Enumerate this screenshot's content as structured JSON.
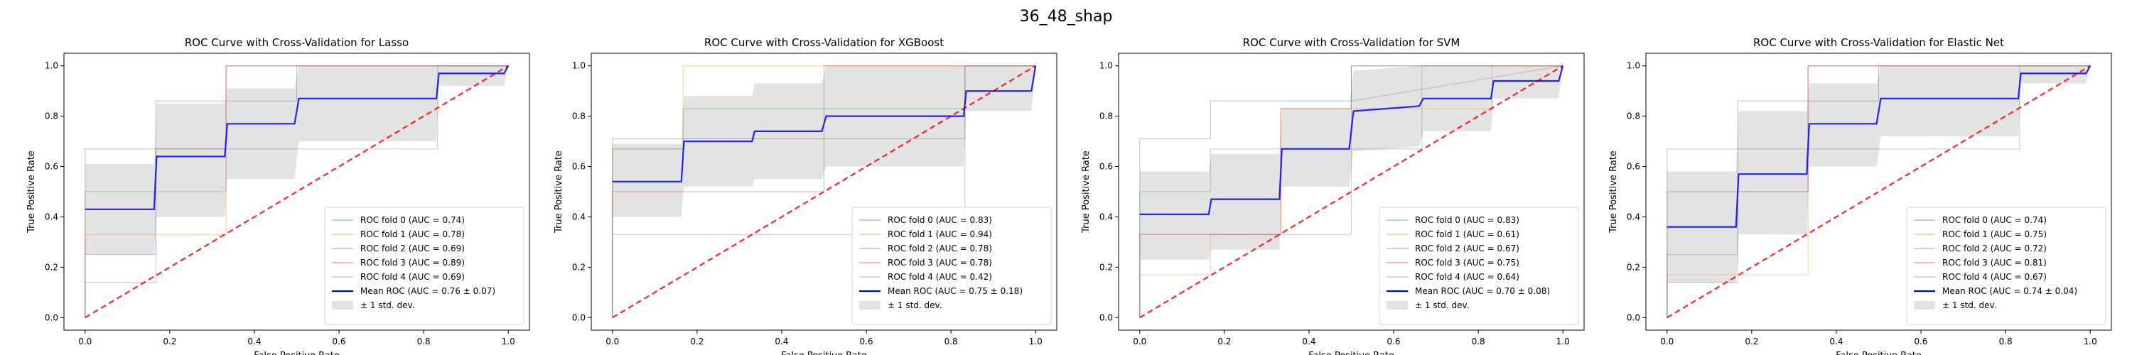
{
  "figure_title": "36_48_shap",
  "colors": {
    "fold_colors": [
      "#1f77b4",
      "#ff7f0e",
      "#2ca02c",
      "#d62728",
      "#9467bd"
    ],
    "mean_color": "#0000ff",
    "chance_color": "#ff0000",
    "band_color": "#c0c0c0"
  },
  "chart_data": [
    {
      "type": "line",
      "title": "ROC Curve with Cross-Validation for Lasso",
      "xlabel": "False Positive Rate",
      "ylabel": "True Positive Rate",
      "xlim": [
        -0.05,
        1.05
      ],
      "ylim": [
        -0.05,
        1.05
      ],
      "xticks": [
        "0.0",
        "0.2",
        "0.4",
        "0.6",
        "0.8",
        "1.0"
      ],
      "yticks": [
        "0.0",
        "0.2",
        "0.4",
        "0.6",
        "0.8",
        "1.0"
      ],
      "grid": false,
      "legend_position": "lower-right",
      "series": [
        {
          "name": "ROC fold 0 (AUC = 0.74)",
          "x": [
            0,
            0,
            0.167,
            0.167,
            0.5,
            0.5,
            1.0,
            1.0
          ],
          "y": [
            0,
            0.14,
            0.14,
            0.86,
            0.86,
            1.0,
            1.0,
            1.0
          ]
        },
        {
          "name": "ROC fold 1 (AUC = 0.78)",
          "x": [
            0,
            0,
            0.333,
            0.333,
            1.0
          ],
          "y": [
            0,
            0.33,
            0.33,
            1.0,
            1.0
          ]
        },
        {
          "name": "ROC fold 2 (AUC = 0.69)",
          "x": [
            0,
            0,
            0.167,
            0.167,
            0.833,
            0.833,
            1.0
          ],
          "y": [
            0,
            0.5,
            0.5,
            0.67,
            0.67,
            1.0,
            1.0
          ]
        },
        {
          "name": "ROC fold 3 (AUC = 0.89)",
          "x": [
            0,
            0,
            0.333,
            0.333,
            1.0
          ],
          "y": [
            0,
            0.67,
            0.67,
            1.0,
            1.0
          ]
        },
        {
          "name": "ROC fold 4 (AUC = 0.69)",
          "x": [
            0,
            0,
            0.167,
            0.167,
            0.333,
            0.333,
            1.0
          ],
          "y": [
            0,
            0.25,
            0.25,
            0.5,
            0.5,
            1.0,
            1.0
          ]
        },
        {
          "name": "Mean ROC (AUC = 0.76 ± 0.07)",
          "x": [
            0,
            0.163,
            0.169,
            0.33,
            0.336,
            0.495,
            0.505,
            0.83,
            0.836,
            0.99,
            1.0
          ],
          "y": [
            0.43,
            0.43,
            0.64,
            0.64,
            0.77,
            0.77,
            0.87,
            0.87,
            0.97,
            0.97,
            1.0
          ]
        }
      ],
      "band": {
        "name": "± 1 std. dev.",
        "x": [
          0,
          0.163,
          0.169,
          0.33,
          0.336,
          0.495,
          0.505,
          0.83,
          0.836,
          0.99,
          1.0
        ],
        "lower": [
          0.25,
          0.25,
          0.4,
          0.4,
          0.55,
          0.55,
          0.7,
          0.7,
          0.92,
          0.92,
          1.0
        ],
        "upper": [
          0.61,
          0.61,
          0.85,
          0.85,
          0.91,
          0.91,
          1.0,
          1.0,
          1.0,
          1.0,
          1.0
        ]
      }
    },
    {
      "type": "line",
      "title": "ROC Curve with Cross-Validation for XGBoost",
      "xlabel": "False Positive Rate",
      "ylabel": "True Positive Rate",
      "xlim": [
        -0.05,
        1.05
      ],
      "ylim": [
        -0.05,
        1.05
      ],
      "xticks": [
        "0.0",
        "0.2",
        "0.4",
        "0.6",
        "0.8",
        "1.0"
      ],
      "yticks": [
        "0.0",
        "0.2",
        "0.4",
        "0.6",
        "0.8",
        "1.0"
      ],
      "grid": false,
      "legend_position": "lower-right",
      "series": [
        {
          "name": "ROC fold 0 (AUC = 0.83)",
          "x": [
            0,
            0,
            0.833,
            0.833,
            1.0
          ],
          "y": [
            0,
            0.71,
            0.71,
            1.0,
            1.0
          ]
        },
        {
          "name": "ROC fold 1 (AUC = 0.94)",
          "x": [
            0,
            0,
            0.167,
            0.167,
            1.0
          ],
          "y": [
            0,
            0.67,
            0.67,
            1.0,
            1.0
          ]
        },
        {
          "name": "ROC fold 2 (AUC = 0.78)",
          "x": [
            0,
            0,
            0.167,
            0.167,
            0.833,
            0.833,
            1.0
          ],
          "y": [
            0,
            0.67,
            0.67,
            0.83,
            0.83,
            1.0,
            1.0
          ]
        },
        {
          "name": "ROC fold 3 (AUC = 0.78)",
          "x": [
            0,
            0,
            0.5,
            0.5,
            1.0
          ],
          "y": [
            0,
            0.5,
            0.5,
            1.0,
            1.0
          ]
        },
        {
          "name": "ROC fold 4 (AUC = 0.42)",
          "x": [
            0,
            0,
            0.833,
            0.833,
            1.0
          ],
          "y": [
            0,
            0.33,
            0.33,
            1.0,
            1.0
          ]
        },
        {
          "name": "Mean ROC (AUC = 0.75 ± 0.18)",
          "x": [
            0,
            0.163,
            0.169,
            0.33,
            0.336,
            0.495,
            0.505,
            0.83,
            0.836,
            0.99,
            1.0
          ],
          "y": [
            0.54,
            0.54,
            0.7,
            0.7,
            0.74,
            0.74,
            0.8,
            0.8,
            0.9,
            0.9,
            1.0
          ]
        }
      ],
      "band": {
        "name": "± 1 std. dev.",
        "x": [
          0,
          0.163,
          0.169,
          0.33,
          0.336,
          0.495,
          0.505,
          0.83,
          0.836,
          0.99,
          1.0
        ],
        "lower": [
          0.4,
          0.4,
          0.52,
          0.52,
          0.55,
          0.55,
          0.6,
          0.6,
          0.82,
          0.82,
          1.0
        ],
        "upper": [
          0.69,
          0.69,
          0.88,
          0.88,
          0.93,
          0.93,
          1.0,
          1.0,
          1.0,
          1.0,
          1.0
        ]
      }
    },
    {
      "type": "line",
      "title": "ROC Curve with Cross-Validation for SVM",
      "xlabel": "False Positive Rate",
      "ylabel": "True Positive Rate",
      "xlim": [
        -0.05,
        1.05
      ],
      "ylim": [
        -0.05,
        1.05
      ],
      "xticks": [
        "0.0",
        "0.2",
        "0.4",
        "0.6",
        "0.8",
        "1.0"
      ],
      "yticks": [
        "0.0",
        "0.2",
        "0.4",
        "0.6",
        "0.8",
        "1.0"
      ],
      "grid": false,
      "legend_position": "lower-right",
      "series": [
        {
          "name": "ROC fold 0 (AUC = 0.83)",
          "x": [
            0,
            0,
            0.167,
            0.167,
            0.5,
            0.5,
            1.0
          ],
          "y": [
            0,
            0.71,
            0.71,
            0.86,
            0.86,
            1.0,
            1.0
          ]
        },
        {
          "name": "ROC fold 1 (AUC = 0.61)",
          "x": [
            0,
            0,
            0.167,
            0.167,
            0.333,
            0.333,
            0.833,
            0.833,
            1.0
          ],
          "y": [
            0,
            0.17,
            0.17,
            0.33,
            0.33,
            0.83,
            0.83,
            1.0,
            1.0
          ]
        },
        {
          "name": "ROC fold 2 (AUC = 0.67)",
          "x": [
            0,
            0,
            0.167,
            0.167,
            0.667,
            0.667,
            1.0
          ],
          "y": [
            0,
            0.5,
            0.5,
            0.67,
            0.67,
            1.0,
            1.0
          ]
        },
        {
          "name": "ROC fold 3 (AUC = 0.75)",
          "x": [
            0,
            0,
            0.333,
            0.333,
            0.5,
            0.5,
            1.0
          ],
          "y": [
            0,
            0.33,
            0.33,
            0.83,
            0.83,
            1.0,
            1.0
          ]
        },
        {
          "name": "ROC fold 4 (AUC = 0.64)",
          "x": [
            0,
            0,
            0.5,
            0.5,
            1.0
          ],
          "y": [
            0,
            0.33,
            0.33,
            0.86,
            1.0
          ]
        },
        {
          "name": "Mean ROC (AUC = 0.70 ± 0.08)",
          "x": [
            0,
            0.163,
            0.169,
            0.33,
            0.336,
            0.495,
            0.505,
            0.66,
            0.67,
            0.83,
            0.836,
            0.99,
            1.0
          ],
          "y": [
            0.41,
            0.41,
            0.47,
            0.47,
            0.67,
            0.67,
            0.82,
            0.84,
            0.87,
            0.87,
            0.94,
            0.94,
            1.0
          ]
        },
        {
          "name": "",
          "x": [
            0,
            0.163,
            0.169,
            0.33,
            0.336,
            0.495,
            0.505,
            0.66,
            0.67,
            0.83,
            0.836,
            0.99,
            1.0
          ],
          "y": [
            0.41,
            0.41,
            0.47,
            0.47,
            0.67,
            0.67,
            0.82,
            0.84,
            0.87,
            0.87,
            0.94,
            0.94,
            1.0
          ]
        }
      ],
      "band": {
        "name": "± 1 std. dev.",
        "x": [
          0,
          0.163,
          0.169,
          0.33,
          0.336,
          0.495,
          0.505,
          0.66,
          0.67,
          0.83,
          0.836,
          0.99,
          1.0
        ],
        "lower": [
          0.23,
          0.23,
          0.27,
          0.27,
          0.52,
          0.52,
          0.66,
          0.68,
          0.74,
          0.74,
          0.87,
          0.87,
          1.0
        ],
        "upper": [
          0.58,
          0.58,
          0.65,
          0.65,
          0.83,
          0.83,
          0.98,
          1.0,
          1.0,
          1.0,
          1.0,
          1.0,
          1.0
        ]
      }
    },
    {
      "type": "line",
      "title": "ROC Curve with Cross-Validation for Elastic Net",
      "xlabel": "False Positive Rate",
      "ylabel": "True Positive Rate",
      "xlim": [
        -0.05,
        1.05
      ],
      "ylim": [
        -0.05,
        1.05
      ],
      "xticks": [
        "0.0",
        "0.2",
        "0.4",
        "0.6",
        "0.8",
        "1.0"
      ],
      "yticks": [
        "0.0",
        "0.2",
        "0.4",
        "0.6",
        "0.8",
        "1.0"
      ],
      "grid": false,
      "legend_position": "lower-right",
      "series": [
        {
          "name": "ROC fold 0 (AUC = 0.74)",
          "x": [
            0,
            0,
            0.167,
            0.167,
            0.5,
            0.5,
            1.0
          ],
          "y": [
            0,
            0.14,
            0.14,
            0.86,
            0.86,
            1.0,
            1.0
          ]
        },
        {
          "name": "ROC fold 1 (AUC = 0.75)",
          "x": [
            0,
            0,
            0.333,
            0.333,
            1.0
          ],
          "y": [
            0,
            0.17,
            0.17,
            1.0,
            1.0
          ]
        },
        {
          "name": "ROC fold 2 (AUC = 0.72)",
          "x": [
            0,
            0,
            0.167,
            0.167,
            0.833,
            0.833,
            1.0
          ],
          "y": [
            0,
            0.67,
            0.67,
            0.67,
            0.67,
            1.0,
            1.0
          ]
        },
        {
          "name": "ROC fold 3 (AUC = 0.81)",
          "x": [
            0,
            0,
            0.333,
            0.333,
            1.0
          ],
          "y": [
            0,
            0.5,
            0.5,
            1.0,
            1.0
          ]
        },
        {
          "name": "ROC fold 4 (AUC = 0.67)",
          "x": [
            0,
            0,
            0.167,
            0.167,
            0.333,
            0.333,
            1.0
          ],
          "y": [
            0,
            0.25,
            0.25,
            0.5,
            0.5,
            1.0,
            1.0
          ]
        },
        {
          "name": "Mean ROC (AUC = 0.74 ± 0.04)",
          "x": [
            0,
            0.163,
            0.169,
            0.33,
            0.336,
            0.495,
            0.505,
            0.83,
            0.836,
            0.99,
            1.0
          ],
          "y": [
            0.36,
            0.36,
            0.57,
            0.57,
            0.77,
            0.77,
            0.87,
            0.87,
            0.97,
            0.97,
            1.0
          ]
        }
      ],
      "band": {
        "name": "± 1 std. dev.",
        "x": [
          0,
          0.163,
          0.169,
          0.33,
          0.336,
          0.495,
          0.505,
          0.83,
          0.836,
          0.99,
          1.0
        ],
        "lower": [
          0.14,
          0.14,
          0.33,
          0.33,
          0.6,
          0.6,
          0.72,
          0.72,
          0.93,
          0.93,
          1.0
        ],
        "upper": [
          0.58,
          0.58,
          0.82,
          0.82,
          0.93,
          0.93,
          1.0,
          1.0,
          1.0,
          1.0,
          1.0
        ]
      }
    }
  ]
}
